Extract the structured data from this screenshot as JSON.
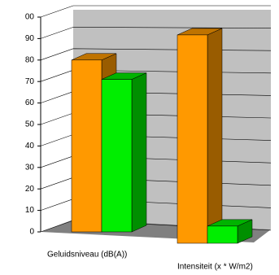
{
  "chart_data": {
    "type": "bar3d",
    "categories": [
      "Geluidsniveau  (dB(A))",
      "Intensiteit (x * W/m2)"
    ],
    "series": [
      {
        "color": "#ff9900",
        "values": [
          80,
          97
        ]
      },
      {
        "color": "#00ee00",
        "values": [
          71,
          8
        ]
      }
    ],
    "ylim": [
      0,
      100
    ],
    "yticks": [
      0,
      10,
      20,
      30,
      40,
      50,
      60,
      70,
      80,
      90,
      {
        "value": 100,
        "label": "00"
      }
    ],
    "grid": true
  }
}
